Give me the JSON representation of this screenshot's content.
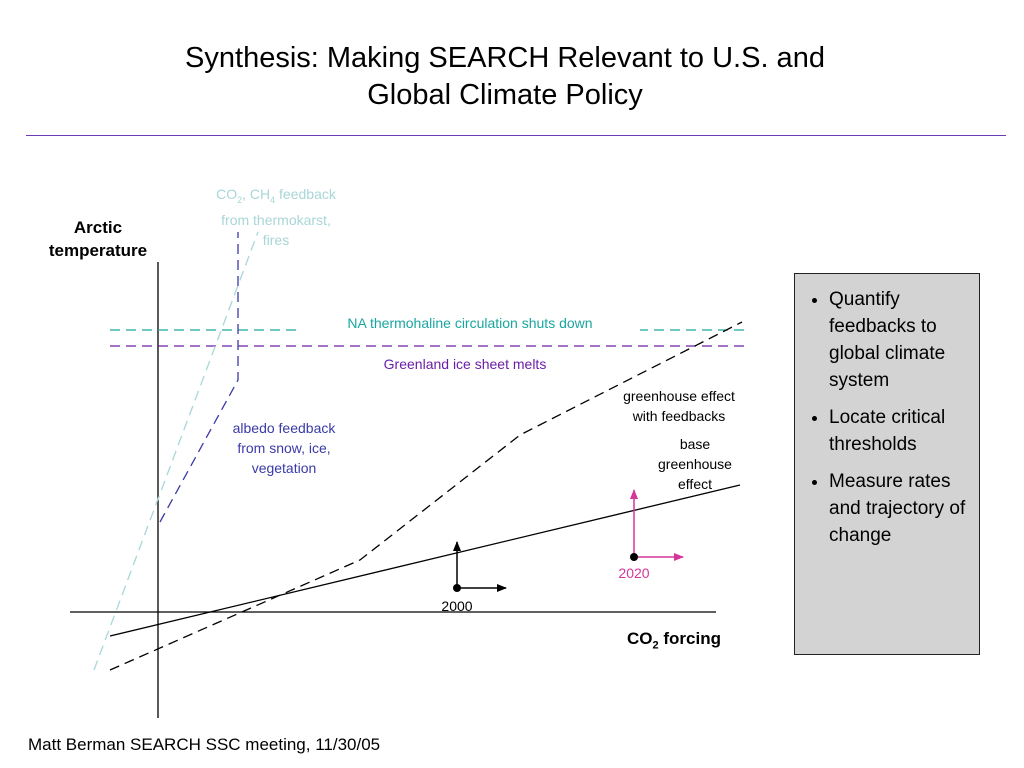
{
  "title": {
    "line1": "Synthesis: Making SEARCH Relevant to U.S. and",
    "line2": "Global Climate Policy"
  },
  "diagram": {
    "y_axis_label": {
      "line1": "Arctic",
      "line2": "temperature"
    },
    "x_axis_label": {
      "main": "CO",
      "sub": "2",
      "tail": " forcing"
    },
    "thermokarst_label": {
      "p1": "CO",
      "s1": "2",
      "p2": ", CH",
      "s2": "4",
      "p3": " feedback",
      "line2": "from thermokarst,",
      "line3": "fires"
    },
    "thermohaline_label": "NA thermohaline circulation shuts down",
    "greenland_label": "Greenland ice sheet melts",
    "albedo_label": {
      "line1": "albedo feedback",
      "line2": "from snow, ice,",
      "line3": "vegetation"
    },
    "feedback_curve_label": {
      "line1": "greenhouse effect",
      "line2": "with feedbacks"
    },
    "base_curve_label": {
      "line1": "base",
      "line2": "greenhouse",
      "line3": "effect"
    },
    "point_2000_label": "2000",
    "point_2020_label": "2020",
    "colors": {
      "thermokarst": "#a9d6d8",
      "thermohaline": "#1aa6a0",
      "greenland": "#6a1fa8",
      "albedo": "#3a3aa8",
      "point_2020": "#d4369a",
      "rule": "#6a3db8"
    }
  },
  "bullets": [
    "Quantify feedbacks to global climate system",
    "Locate critical thresholds",
    "Measure rates and trajectory of change"
  ],
  "footer": "Matt Berman SEARCH SSC meeting, 11/30/05"
}
